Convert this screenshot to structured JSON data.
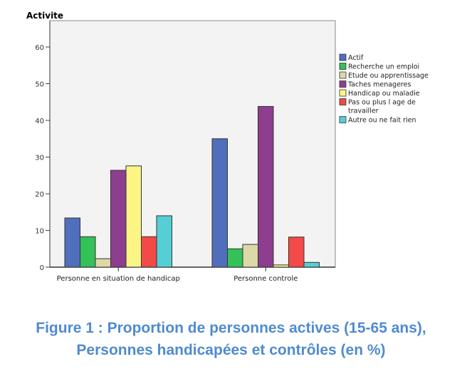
{
  "chart_data": {
    "type": "bar",
    "title": "Activite",
    "categories": [
      "Personne en situation de handicap",
      "Personne controle"
    ],
    "ylim": [
      0,
      60
    ],
    "yticks": [
      0,
      10,
      20,
      30,
      40,
      50,
      60
    ],
    "legend_position": "right",
    "series": [
      {
        "name": "Actif",
        "color": "#4f6fbd",
        "values": [
          13.4,
          35.0
        ]
      },
      {
        "name": "Recherche un emploi",
        "color": "#33c158",
        "values": [
          8.3,
          5.0
        ]
      },
      {
        "name": "Etude ou apprentissage",
        "color": "#ddd8a7",
        "values": [
          2.3,
          6.2
        ]
      },
      {
        "name": "Taches menageres",
        "color": "#8e3e8f",
        "values": [
          26.4,
          43.8
        ]
      },
      {
        "name": "Handicap ou maladie",
        "color": "#fbf586",
        "values": [
          27.6,
          0.6
        ]
      },
      {
        "name": "Pas ou plus l age de travailler",
        "color": "#f34a47",
        "values": [
          8.3,
          8.2
        ]
      },
      {
        "name": "Autre ou ne fait rien",
        "color": "#55ced4",
        "values": [
          14.0,
          1.3
        ]
      }
    ]
  },
  "caption": {
    "line1": "Figure 1 : Proportion de personnes actives (15-65 ans),",
    "line2": "Personnes handicapées et contrôles (en %)"
  }
}
